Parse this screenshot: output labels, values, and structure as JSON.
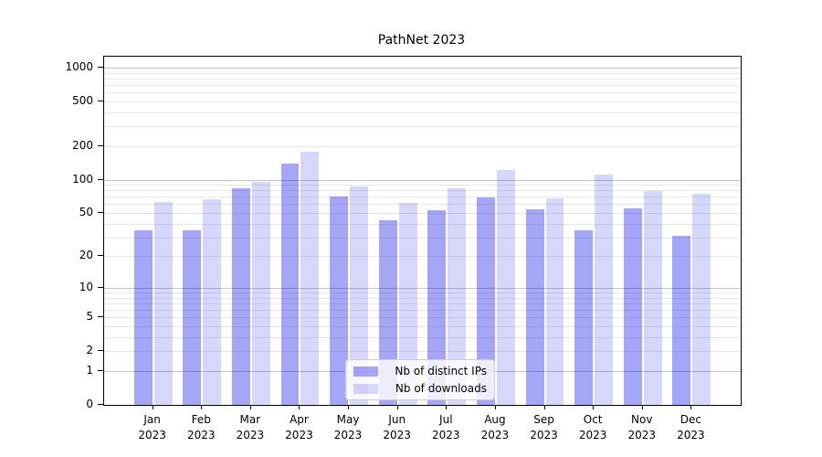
{
  "title": "PathNet 2023",
  "chart_data": {
    "type": "bar",
    "title": "PathNet 2023",
    "categories": [
      "Jan 2023",
      "Feb 2023",
      "Mar 2023",
      "Apr 2023",
      "May 2023",
      "Jun 2023",
      "Jul 2023",
      "Aug 2023",
      "Sep 2023",
      "Oct 2023",
      "Nov 2023",
      "Dec 2023"
    ],
    "month_labels": [
      "Jan",
      "Feb",
      "Mar",
      "Apr",
      "May",
      "Jun",
      "Jul",
      "Aug",
      "Sep",
      "Oct",
      "Nov",
      "Dec"
    ],
    "year_label": "2023",
    "series": [
      {
        "name": "Nb of distinct IPs",
        "color": "rgba(0,0,230,0.35)",
        "color_hex_on_white": "#a6a6f6",
        "values": [
          35,
          35,
          83,
          140,
          71,
          43,
          53,
          69,
          54,
          35,
          55,
          31
        ]
      },
      {
        "name": "Nb of downloads",
        "color": "rgba(0,0,230,0.155)",
        "color_hex_on_white": "#d7d7fb",
        "values": [
          63,
          66,
          96,
          177,
          87,
          62,
          83,
          123,
          68,
          111,
          79,
          74
        ]
      }
    ],
    "xlabel": "",
    "ylabel": "",
    "yscale": "log1p",
    "ylim": [
      0,
      1253
    ],
    "y_ticks": [
      0,
      1,
      2,
      5,
      10,
      20,
      50,
      100,
      200,
      500,
      1000
    ],
    "y_major_grid_ticks": [
      1,
      10,
      100,
      1000
    ],
    "y_minor_grid_ticks": [
      2,
      3,
      4,
      5,
      6,
      7,
      8,
      9,
      20,
      30,
      40,
      50,
      60,
      70,
      80,
      90,
      200,
      300,
      400,
      500,
      600,
      700,
      800,
      900
    ],
    "grid": "on",
    "legend_position": "lower center",
    "major_grid_color": "#c3c3c3",
    "minor_grid_color": "#e7e7e7"
  }
}
